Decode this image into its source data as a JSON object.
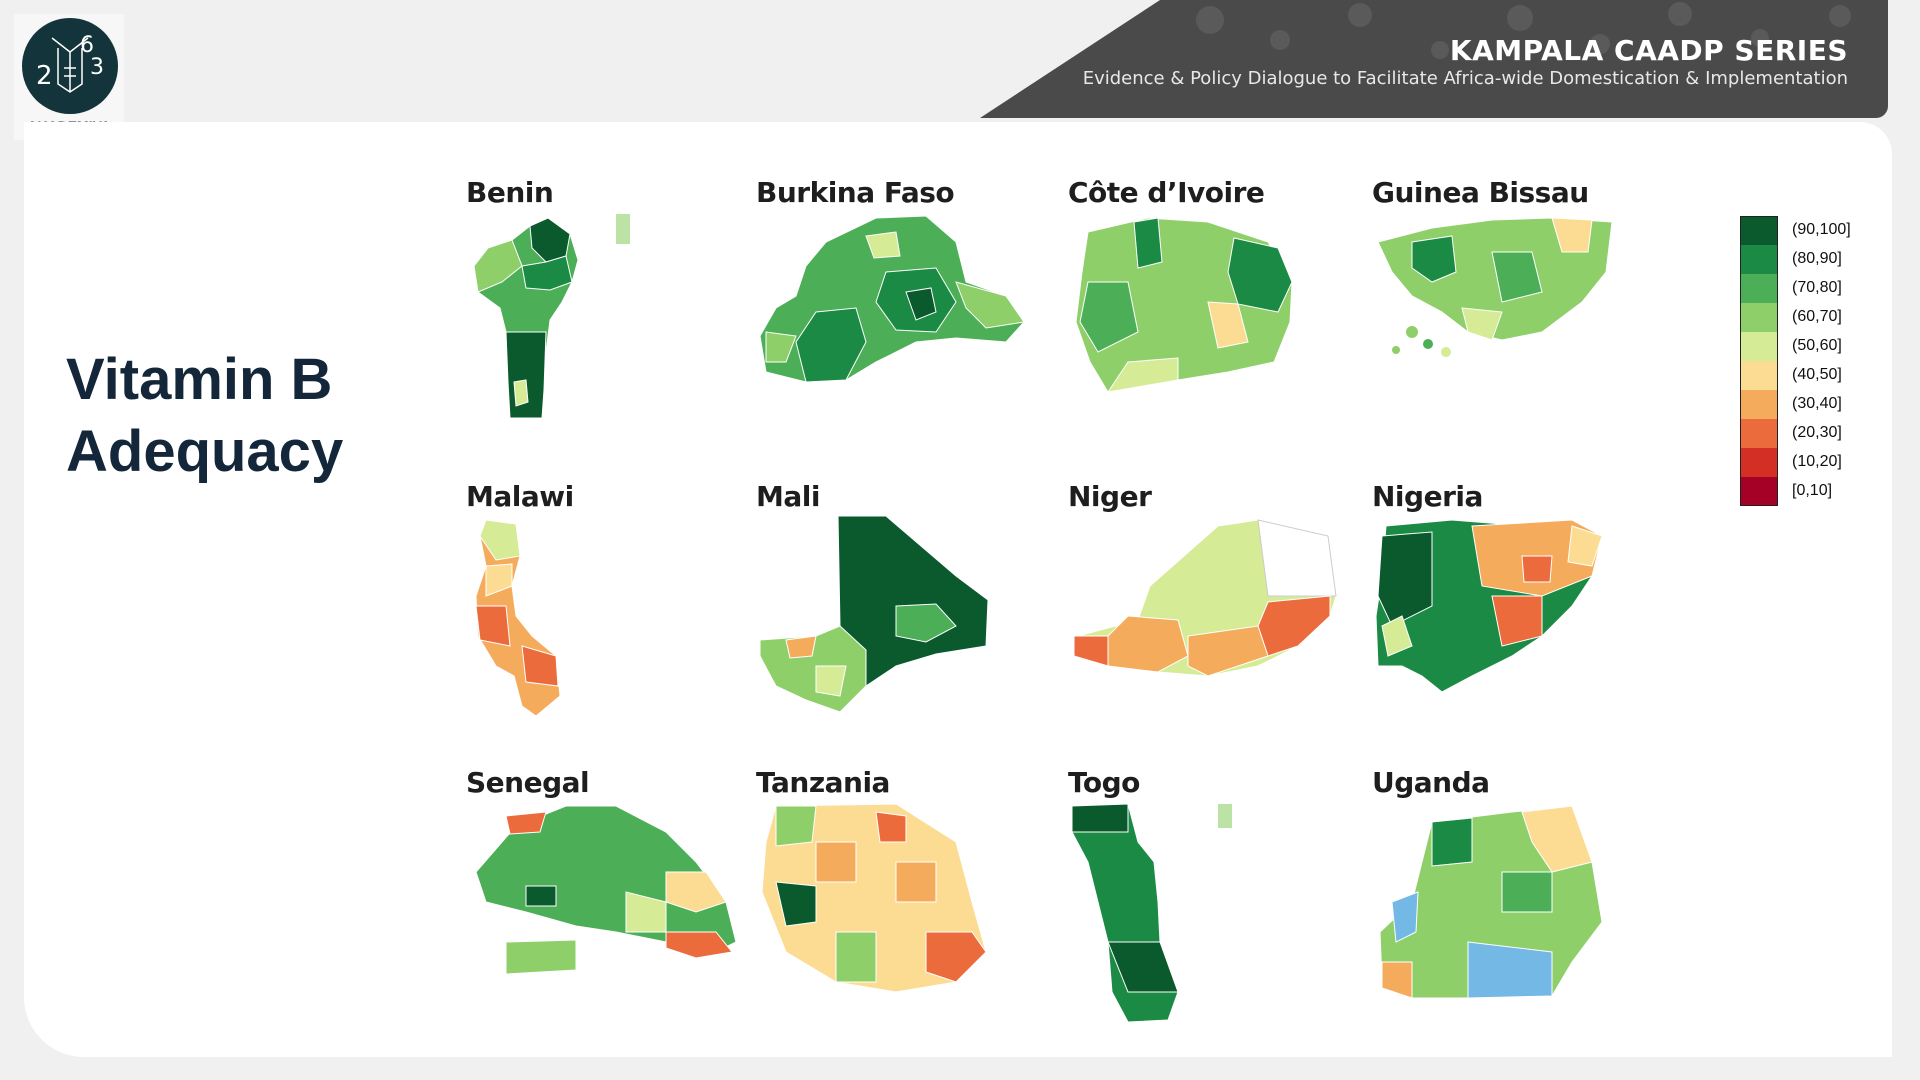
{
  "header": {
    "title": "KAMPALA CAADP SERIES",
    "subtitle": "Evidence & Policy Dialogue to Facilitate Africa-wide Domestication & Implementation"
  },
  "logo": {
    "text": "AKADEMIYA",
    "mark": "2063"
  },
  "slide": {
    "title_line1": "Vitamin B",
    "title_line2": "Adequacy"
  },
  "legend": {
    "items": [
      {
        "label": "(90,100]",
        "color": "#0a5a2e"
      },
      {
        "label": "(80,90]",
        "color": "#1b8a44"
      },
      {
        "label": "(70,80]",
        "color": "#4caf58"
      },
      {
        "label": "(60,70]",
        "color": "#8fcf6a"
      },
      {
        "label": "(50,60]",
        "color": "#d5eb96"
      },
      {
        "label": "(40,50]",
        "color": "#fbdc92"
      },
      {
        "label": "(30,40]",
        "color": "#f5ab5c"
      },
      {
        "label": "(20,30]",
        "color": "#ec6b3c"
      },
      {
        "label": "(10,20]",
        "color": "#d32f25"
      },
      {
        "label": "[0,10]",
        "color": "#a50026"
      }
    ]
  },
  "maps": [
    {
      "country": "Benin",
      "dominant_bin": "(70,80]"
    },
    {
      "country": "Burkina Faso",
      "dominant_bin": "(70,80]"
    },
    {
      "country": "Côte d’Ivoire",
      "dominant_bin": "(60,70]"
    },
    {
      "country": "Guinea Bissau",
      "dominant_bin": "(60,70]"
    },
    {
      "country": "Malawi",
      "dominant_bin": "(30,40]"
    },
    {
      "country": "Mali",
      "dominant_bin": "(90,100]"
    },
    {
      "country": "Niger",
      "dominant_bin": "(50,60]"
    },
    {
      "country": "Nigeria",
      "dominant_bin": "(80,90]"
    },
    {
      "country": "Senegal",
      "dominant_bin": "(60,70]"
    },
    {
      "country": "Tanzania",
      "dominant_bin": "(40,50]"
    },
    {
      "country": "Togo",
      "dominant_bin": "(90,100]"
    },
    {
      "country": "Uganda",
      "dominant_bin": "(60,70]"
    }
  ]
}
